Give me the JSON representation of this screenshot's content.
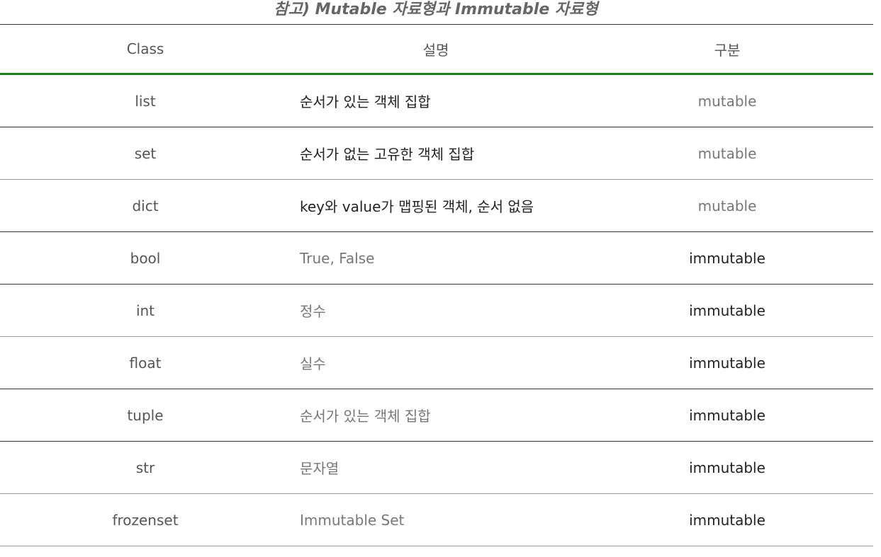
{
  "caption": "참고) Mutable 자료형과 Immutable 자료형",
  "headers": [
    "Class",
    "설명",
    "구분"
  ],
  "rows": [
    {
      "cls": "list",
      "desc": "순서가 있는 객체 집합",
      "kind": "mutable"
    },
    {
      "cls": "set",
      "desc": "순서가 없는 고유한 객체 집합",
      "kind": "mutable"
    },
    {
      "cls": "dict",
      "desc": "key와 value가 맵핑된 객체, 순서 없음",
      "kind": "mutable"
    },
    {
      "cls": "bool",
      "desc": "True, False",
      "kind": "immutable"
    },
    {
      "cls": "int",
      "desc": "정수",
      "kind": "immutable"
    },
    {
      "cls": "float",
      "desc": "실수",
      "kind": "immutable"
    },
    {
      "cls": "tuple",
      "desc": "순서가 있는 객체 집합",
      "kind": "immutable"
    },
    {
      "cls": "str",
      "desc": "문자열",
      "kind": "immutable"
    },
    {
      "cls": "frozenset",
      "desc": "Immutable Set",
      "kind": "immutable"
    }
  ]
}
